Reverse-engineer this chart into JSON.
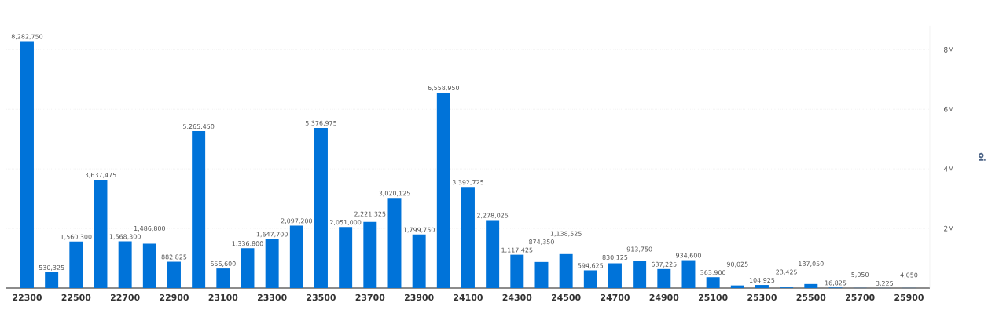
{
  "chart_data": {
    "type": "bar",
    "ylabel": "oi",
    "color": "#0073d9",
    "categories": [
      "22300",
      null,
      "22500",
      null,
      "22700",
      null,
      "22900",
      null,
      "23100",
      null,
      "23300",
      null,
      "23500",
      null,
      "23700",
      null,
      "23900",
      null,
      "24100",
      null,
      "24300",
      null,
      "24500",
      null,
      "24700",
      null,
      "24900",
      null,
      "25100",
      null,
      "25300",
      null,
      "25500",
      null,
      "25700",
      null,
      "25900"
    ],
    "values": [
      8282750,
      530325,
      1560300,
      3637475,
      1568300,
      1486800,
      882825,
      5265450,
      656600,
      1336800,
      1647700,
      2097200,
      5376975,
      2051000,
      2221325,
      3020125,
      1799750,
      6558950,
      3392725,
      2278025,
      1117425,
      874350,
      1138525,
      594625,
      830125,
      913750,
      637225,
      934600,
      363900,
      90025,
      104925,
      23425,
      137050,
      16825,
      5050,
      3225,
      4050
    ],
    "value_labels": [
      "8,282,750",
      "530,325",
      "1,560,300",
      "3,637,475",
      "1,568,300",
      "1,486,800",
      "882,825",
      "5,265,450",
      "656,600",
      "1,336,800",
      "1,647,700",
      "2,097,200",
      "5,376,975",
      "2,051,000",
      "2,221,325",
      "3,020,125",
      "1,799,750",
      "6,558,950",
      "3,392,725",
      "2,278,025",
      "1,117,425",
      "874,350",
      "1,138,525",
      "594,625",
      "830,125",
      "913,750",
      "637,225",
      "934,600",
      "363,900",
      "90,025",
      "104,925",
      "23,425",
      "137,050",
      "16,825",
      "5,050",
      "3,225",
      "4,050"
    ],
    "ylim": [
      0,
      8800000
    ],
    "yticks": [
      {
        "value": 2000000,
        "label": "2M"
      },
      {
        "value": 4000000,
        "label": "4M"
      },
      {
        "value": 6000000,
        "label": "6M"
      },
      {
        "value": 8000000,
        "label": "8M"
      }
    ],
    "grid": "y"
  }
}
